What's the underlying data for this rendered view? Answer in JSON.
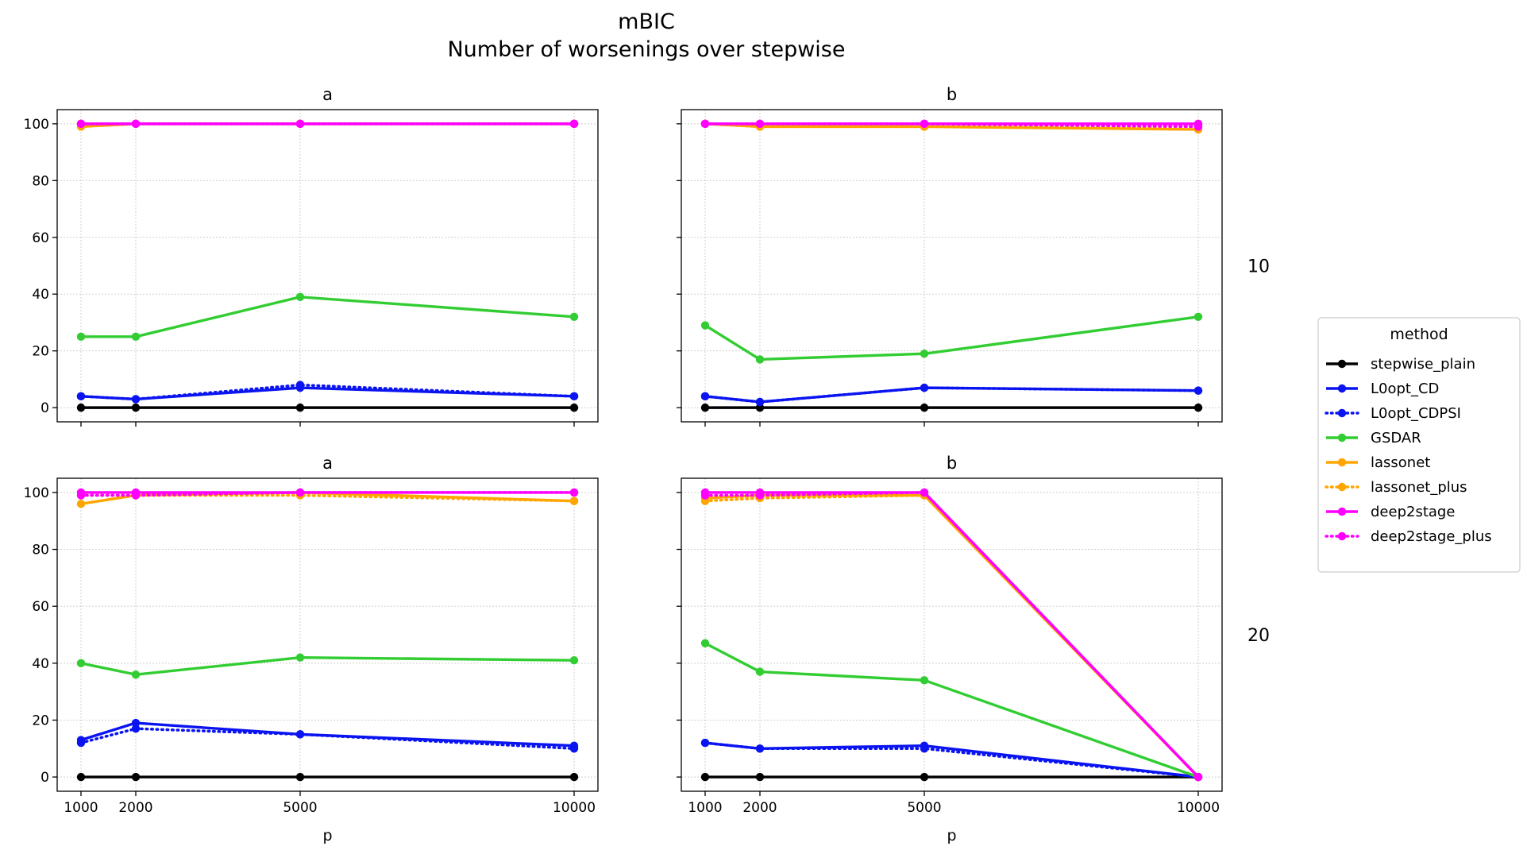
{
  "title_line1": "mBIC",
  "title_line2": "Number of worsenings over stepwise",
  "colors": {
    "stepwise_plain": "#000000",
    "L0opt_CD": "#0a14f0",
    "L0opt_CDPSI": "#0a14f0",
    "GSDAR": "#32cd32",
    "lassonet": "#ffa500",
    "lassonet_plus": "#ffa500",
    "deep2stage": "#ff00ff",
    "deep2stage_plus": "#ff00ff"
  },
  "legend": {
    "title": "method",
    "entries": [
      {
        "name": "stepwise_plain",
        "style": "solid"
      },
      {
        "name": "L0opt_CD",
        "style": "solid"
      },
      {
        "name": "L0opt_CDPSI",
        "style": "dotted"
      },
      {
        "name": "GSDAR",
        "style": "solid"
      },
      {
        "name": "lassonet",
        "style": "solid"
      },
      {
        "name": "lassonet_plus",
        "style": "dotted"
      },
      {
        "name": "deep2stage",
        "style": "solid"
      },
      {
        "name": "deep2stage_plus",
        "style": "dotted"
      }
    ]
  },
  "chart_data": [
    {
      "type": "line",
      "col_title": "a",
      "row_label": "10",
      "x": [
        1000,
        2000,
        5000,
        10000
      ],
      "xlabel": "",
      "ylim": [
        -5,
        105
      ],
      "yticks": [
        0,
        20,
        40,
        60,
        80,
        100
      ],
      "series": [
        {
          "name": "stepwise_plain",
          "values": [
            0,
            0,
            0,
            0
          ]
        },
        {
          "name": "L0opt_CD",
          "values": [
            4,
            3,
            7,
            4
          ]
        },
        {
          "name": "L0opt_CDPSI",
          "values": [
            4,
            3,
            8,
            4
          ]
        },
        {
          "name": "GSDAR",
          "values": [
            25,
            25,
            39,
            32
          ]
        },
        {
          "name": "lassonet",
          "values": [
            99,
            100,
            100,
            100
          ]
        },
        {
          "name": "lassonet_plus",
          "values": [
            100,
            100,
            100,
            100
          ]
        },
        {
          "name": "deep2stage",
          "values": [
            100,
            100,
            100,
            100
          ]
        },
        {
          "name": "deep2stage_plus",
          "values": [
            100,
            100,
            100,
            100
          ]
        }
      ]
    },
    {
      "type": "line",
      "col_title": "b",
      "row_label": "10",
      "x": [
        1000,
        2000,
        5000,
        10000
      ],
      "xlabel": "",
      "ylim": [
        -5,
        105
      ],
      "yticks": [
        0,
        20,
        40,
        60,
        80,
        100
      ],
      "series": [
        {
          "name": "stepwise_plain",
          "values": [
            0,
            0,
            0,
            0
          ]
        },
        {
          "name": "L0opt_CD",
          "values": [
            4,
            2,
            7,
            6
          ]
        },
        {
          "name": "L0opt_CDPSI",
          "values": [
            4,
            2,
            7,
            6
          ]
        },
        {
          "name": "GSDAR",
          "values": [
            29,
            17,
            19,
            32
          ]
        },
        {
          "name": "lassonet",
          "values": [
            100,
            99,
            99,
            98
          ]
        },
        {
          "name": "lassonet_plus",
          "values": [
            100,
            99,
            99,
            99
          ]
        },
        {
          "name": "deep2stage",
          "values": [
            100,
            100,
            100,
            100
          ]
        },
        {
          "name": "deep2stage_plus",
          "values": [
            100,
            100,
            100,
            99
          ]
        }
      ]
    },
    {
      "type": "line",
      "col_title": "a",
      "row_label": "20",
      "x": [
        1000,
        2000,
        5000,
        10000
      ],
      "xlabel": "p",
      "ylim": [
        -5,
        105
      ],
      "yticks": [
        0,
        20,
        40,
        60,
        80,
        100
      ],
      "series": [
        {
          "name": "stepwise_plain",
          "values": [
            0,
            0,
            0,
            0
          ]
        },
        {
          "name": "L0opt_CD",
          "values": [
            13,
            19,
            15,
            11
          ]
        },
        {
          "name": "L0opt_CDPSI",
          "values": [
            12,
            17,
            15,
            10
          ]
        },
        {
          "name": "GSDAR",
          "values": [
            40,
            36,
            42,
            41
          ]
        },
        {
          "name": "lassonet",
          "values": [
            96,
            99,
            100,
            97
          ]
        },
        {
          "name": "lassonet_plus",
          "values": [
            99,
            99,
            99,
            97
          ]
        },
        {
          "name": "deep2stage",
          "values": [
            100,
            100,
            100,
            100
          ]
        },
        {
          "name": "deep2stage_plus",
          "values": [
            99,
            99,
            100,
            100
          ]
        }
      ]
    },
    {
      "type": "line",
      "col_title": "b",
      "row_label": "20",
      "x": [
        1000,
        2000,
        5000,
        10000
      ],
      "xlabel": "p",
      "ylim": [
        -5,
        105
      ],
      "yticks": [
        0,
        20,
        40,
        60,
        80,
        100
      ],
      "series": [
        {
          "name": "stepwise_plain",
          "values": [
            0,
            0,
            0,
            0
          ]
        },
        {
          "name": "L0opt_CD",
          "values": [
            12,
            10,
            11,
            0
          ]
        },
        {
          "name": "L0opt_CDPSI",
          "values": [
            12,
            10,
            10,
            0
          ]
        },
        {
          "name": "GSDAR",
          "values": [
            47,
            37,
            34,
            0
          ]
        },
        {
          "name": "lassonet",
          "values": [
            98,
            99,
            99,
            0
          ]
        },
        {
          "name": "lassonet_plus",
          "values": [
            97,
            98,
            99,
            0
          ]
        },
        {
          "name": "deep2stage",
          "values": [
            100,
            100,
            100,
            0
          ]
        },
        {
          "name": "deep2stage_plus",
          "values": [
            99,
            99,
            100,
            0
          ]
        }
      ]
    }
  ]
}
